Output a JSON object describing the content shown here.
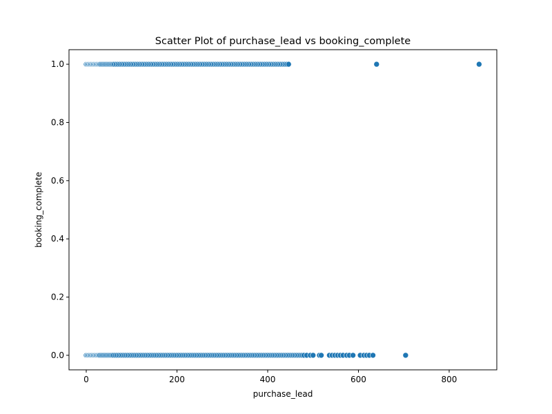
{
  "chart_data": {
    "type": "scatter",
    "title": "Scatter Plot of purchase_lead vs booking_complete",
    "xlabel": "purchase_lead",
    "ylabel": "booking_complete",
    "xlim": [
      -38,
      905
    ],
    "ylim": [
      -0.05,
      1.05
    ],
    "xticks": [
      0,
      200,
      400,
      600,
      800
    ],
    "yticks": [
      0.0,
      0.2,
      0.4,
      0.6,
      0.8,
      1.0
    ],
    "xtick_labels": [
      "0",
      "200",
      "400",
      "600",
      "800"
    ],
    "ytick_labels": [
      "0.0",
      "0.2",
      "0.4",
      "0.6",
      "0.8",
      "1.0"
    ],
    "grid": false,
    "point_color": "#1f77b4",
    "series": [
      {
        "x": [
          0,
          2,
          4,
          6,
          8,
          10,
          12,
          14,
          16,
          18,
          20,
          22,
          24,
          26,
          28,
          30,
          32,
          35,
          38,
          41,
          44,
          47,
          50,
          53,
          56,
          59,
          62,
          66,
          70,
          74,
          78,
          82,
          86,
          90,
          94,
          98,
          102,
          106,
          110,
          114,
          118,
          122,
          126,
          130,
          134,
          138,
          142,
          146,
          150,
          154,
          158,
          162,
          166,
          170,
          174,
          178,
          182,
          186,
          190,
          194,
          198,
          202,
          206,
          210,
          214,
          218,
          222,
          226,
          230,
          234,
          238,
          242,
          246,
          250,
          254,
          258,
          262,
          266,
          270,
          274,
          278,
          282,
          286,
          290,
          294,
          298,
          302,
          306,
          310,
          314,
          318,
          322,
          326,
          330,
          334,
          338,
          342,
          346,
          350,
          354,
          358,
          362,
          366,
          370,
          374,
          378,
          382,
          386,
          390,
          394,
          398,
          402,
          406,
          410,
          414,
          418,
          422,
          426,
          430,
          434,
          438,
          442,
          446,
          640,
          866
        ],
        "y": [
          1,
          1,
          1,
          1,
          1,
          1,
          1,
          1,
          1,
          1,
          1,
          1,
          1,
          1,
          1,
          1,
          1,
          1,
          1,
          1,
          1,
          1,
          1,
          1,
          1,
          1,
          1,
          1,
          1,
          1,
          1,
          1,
          1,
          1,
          1,
          1,
          1,
          1,
          1,
          1,
          1,
          1,
          1,
          1,
          1,
          1,
          1,
          1,
          1,
          1,
          1,
          1,
          1,
          1,
          1,
          1,
          1,
          1,
          1,
          1,
          1,
          1,
          1,
          1,
          1,
          1,
          1,
          1,
          1,
          1,
          1,
          1,
          1,
          1,
          1,
          1,
          1,
          1,
          1,
          1,
          1,
          1,
          1,
          1,
          1,
          1,
          1,
          1,
          1,
          1,
          1,
          1,
          1,
          1,
          1,
          1,
          1,
          1,
          1,
          1,
          1,
          1,
          1,
          1,
          1,
          1,
          1,
          1,
          1,
          1,
          1,
          1,
          1,
          1,
          1,
          1,
          1,
          1,
          1,
          1,
          1,
          1,
          1,
          1,
          1
        ]
      },
      {
        "x": [
          0,
          2,
          4,
          6,
          8,
          10,
          12,
          14,
          16,
          18,
          20,
          22,
          24,
          26,
          28,
          30,
          33,
          36,
          39,
          42,
          45,
          48,
          51,
          54,
          57,
          60,
          64,
          68,
          72,
          76,
          80,
          84,
          88,
          92,
          96,
          100,
          104,
          108,
          112,
          116,
          120,
          124,
          128,
          132,
          136,
          140,
          144,
          148,
          152,
          156,
          160,
          164,
          168,
          172,
          176,
          180,
          184,
          188,
          192,
          196,
          200,
          204,
          208,
          212,
          216,
          220,
          224,
          228,
          232,
          236,
          240,
          244,
          248,
          252,
          256,
          260,
          264,
          268,
          272,
          276,
          280,
          284,
          288,
          292,
          296,
          300,
          304,
          308,
          312,
          316,
          320,
          324,
          328,
          332,
          336,
          340,
          344,
          348,
          352,
          356,
          360,
          364,
          368,
          372,
          376,
          380,
          384,
          388,
          392,
          396,
          400,
          404,
          408,
          412,
          416,
          420,
          424,
          428,
          432,
          436,
          440,
          444,
          448,
          452,
          456,
          460,
          464,
          468,
          472,
          476,
          480,
          486,
          494,
          500,
          514,
          518,
          536,
          542,
          548,
          554,
          560,
          566,
          574,
          580,
          588,
          604,
          612,
          618,
          624,
          632,
          704
        ],
        "y": [
          0,
          0,
          0,
          0,
          0,
          0,
          0,
          0,
          0,
          0,
          0,
          0,
          0,
          0,
          0,
          0,
          0,
          0,
          0,
          0,
          0,
          0,
          0,
          0,
          0,
          0,
          0,
          0,
          0,
          0,
          0,
          0,
          0,
          0,
          0,
          0,
          0,
          0,
          0,
          0,
          0,
          0,
          0,
          0,
          0,
          0,
          0,
          0,
          0,
          0,
          0,
          0,
          0,
          0,
          0,
          0,
          0,
          0,
          0,
          0,
          0,
          0,
          0,
          0,
          0,
          0,
          0,
          0,
          0,
          0,
          0,
          0,
          0,
          0,
          0,
          0,
          0,
          0,
          0,
          0,
          0,
          0,
          0,
          0,
          0,
          0,
          0,
          0,
          0,
          0,
          0,
          0,
          0,
          0,
          0,
          0,
          0,
          0,
          0,
          0,
          0,
          0,
          0,
          0,
          0,
          0,
          0,
          0,
          0,
          0,
          0,
          0,
          0,
          0,
          0,
          0,
          0,
          0,
          0,
          0,
          0,
          0,
          0,
          0,
          0,
          0,
          0,
          0,
          0,
          0,
          0,
          0,
          0,
          0,
          0,
          0,
          0,
          0,
          0,
          0,
          0,
          0,
          0,
          0,
          0,
          0,
          0,
          0,
          0,
          0,
          0
        ]
      }
    ]
  }
}
